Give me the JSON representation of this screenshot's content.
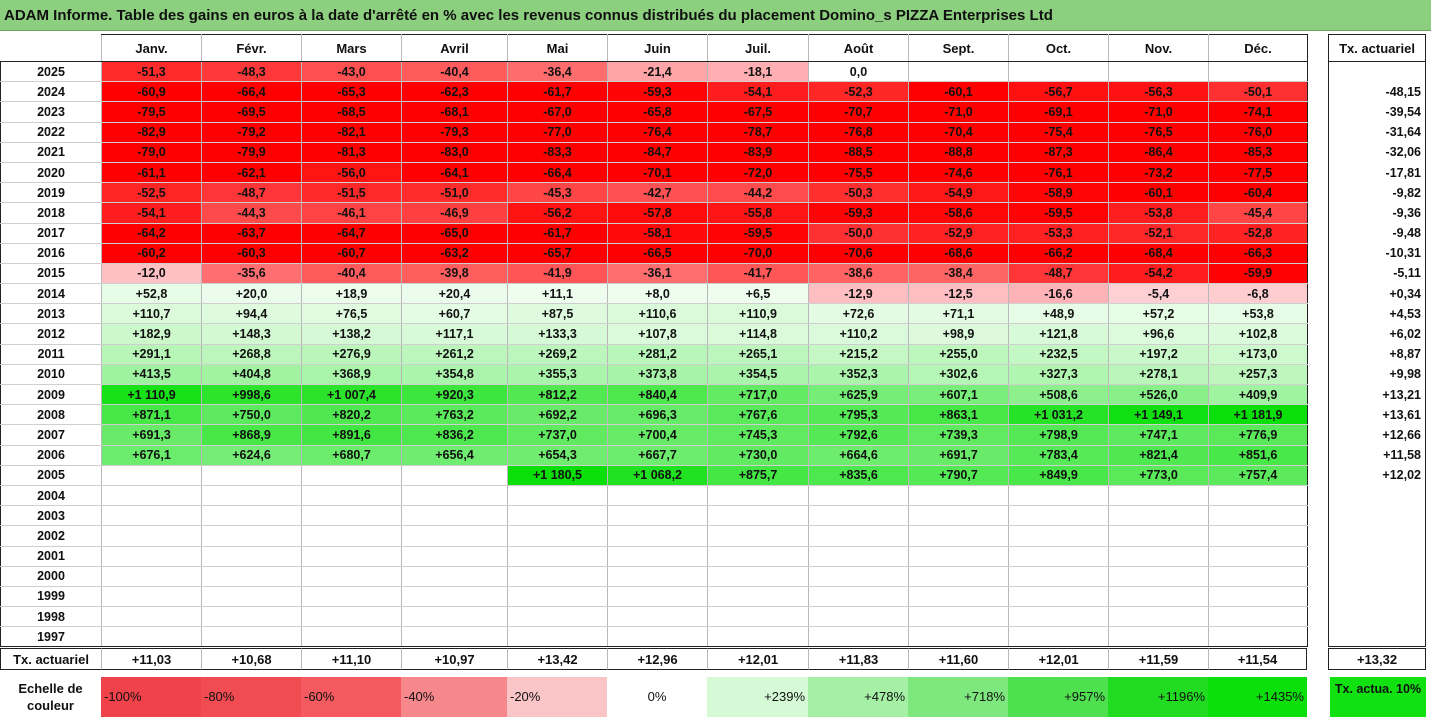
{
  "title": "ADAM Informe. Table des gains en euros à la date d'arrêté en % avec les revenus connus distribués du placement Domino_s PIZZA Enterprises Ltd",
  "months": [
    "Janv.",
    "Févr.",
    "Mars",
    "Avril",
    "Mai",
    "Juin",
    "Juil.",
    "Août",
    "Sept.",
    "Oct.",
    "Nov.",
    "Déc."
  ],
  "side_header": "Tx. actuariel",
  "rows": [
    {
      "year": "2025",
      "cells": [
        "-51,3",
        "-48,3",
        "-43,0",
        "-40,4",
        "-36,4",
        "-21,4",
        "-18,1",
        "0,0",
        "",
        "",
        "",
        ""
      ],
      "rate": ""
    },
    {
      "year": "2024",
      "cells": [
        "-60,9",
        "-66,4",
        "-65,3",
        "-62,3",
        "-61,7",
        "-59,3",
        "-54,1",
        "-52,3",
        "-60,1",
        "-56,7",
        "-56,3",
        "-50,1"
      ],
      "rate": "-48,15"
    },
    {
      "year": "2023",
      "cells": [
        "-79,5",
        "-69,5",
        "-68,5",
        "-68,1",
        "-67,0",
        "-65,8",
        "-67,5",
        "-70,7",
        "-71,0",
        "-69,1",
        "-71,0",
        "-74,1"
      ],
      "rate": "-39,54"
    },
    {
      "year": "2022",
      "cells": [
        "-82,9",
        "-79,2",
        "-82,1",
        "-79,3",
        "-77,0",
        "-76,4",
        "-78,7",
        "-76,8",
        "-70,4",
        "-75,4",
        "-76,5",
        "-76,0"
      ],
      "rate": "-31,64"
    },
    {
      "year": "2021",
      "cells": [
        "-79,0",
        "-79,9",
        "-81,3",
        "-83,0",
        "-83,3",
        "-84,7",
        "-83,9",
        "-88,5",
        "-88,8",
        "-87,3",
        "-86,4",
        "-85,3"
      ],
      "rate": "-32,06"
    },
    {
      "year": "2020",
      "cells": [
        "-61,1",
        "-62,1",
        "-56,0",
        "-64,1",
        "-66,4",
        "-70,1",
        "-72,0",
        "-75,5",
        "-74,6",
        "-76,1",
        "-73,2",
        "-77,5"
      ],
      "rate": "-17,81"
    },
    {
      "year": "2019",
      "cells": [
        "-52,5",
        "-48,7",
        "-51,5",
        "-51,0",
        "-45,3",
        "-42,7",
        "-44,2",
        "-50,3",
        "-54,9",
        "-58,9",
        "-60,1",
        "-60,4"
      ],
      "rate": "-9,82"
    },
    {
      "year": "2018",
      "cells": [
        "-54,1",
        "-44,3",
        "-46,1",
        "-46,9",
        "-56,2",
        "-57,8",
        "-55,8",
        "-59,3",
        "-58,6",
        "-59,5",
        "-53,8",
        "-45,4"
      ],
      "rate": "-9,36"
    },
    {
      "year": "2017",
      "cells": [
        "-64,2",
        "-63,7",
        "-64,7",
        "-65,0",
        "-61,7",
        "-58,1",
        "-59,5",
        "-50,0",
        "-52,9",
        "-53,3",
        "-52,1",
        "-52,8"
      ],
      "rate": "-9,48"
    },
    {
      "year": "2016",
      "cells": [
        "-60,2",
        "-60,3",
        "-60,7",
        "-63,2",
        "-65,7",
        "-66,5",
        "-70,0",
        "-70,6",
        "-68,6",
        "-66,2",
        "-68,4",
        "-66,3"
      ],
      "rate": "-10,31"
    },
    {
      "year": "2015",
      "cells": [
        "-12,0",
        "-35,6",
        "-40,4",
        "-39,8",
        "-41,9",
        "-36,1",
        "-41,7",
        "-38,6",
        "-38,4",
        "-48,7",
        "-54,2",
        "-59,9"
      ],
      "rate": "-5,11"
    },
    {
      "year": "2014",
      "cells": [
        "+52,8",
        "+20,0",
        "+18,9",
        "+20,4",
        "+11,1",
        "+8,0",
        "+6,5",
        "-12,9",
        "-12,5",
        "-16,6",
        "-5,4",
        "-6,8"
      ],
      "rate": "+0,34"
    },
    {
      "year": "2013",
      "cells": [
        "+110,7",
        "+94,4",
        "+76,5",
        "+60,7",
        "+87,5",
        "+110,6",
        "+110,9",
        "+72,6",
        "+71,1",
        "+48,9",
        "+57,2",
        "+53,8"
      ],
      "rate": "+4,53"
    },
    {
      "year": "2012",
      "cells": [
        "+182,9",
        "+148,3",
        "+138,2",
        "+117,1",
        "+133,3",
        "+107,8",
        "+114,8",
        "+110,2",
        "+98,9",
        "+121,8",
        "+96,6",
        "+102,8"
      ],
      "rate": "+6,02"
    },
    {
      "year": "2011",
      "cells": [
        "+291,1",
        "+268,8",
        "+276,9",
        "+261,2",
        "+269,2",
        "+281,2",
        "+265,1",
        "+215,2",
        "+255,0",
        "+232,5",
        "+197,2",
        "+173,0"
      ],
      "rate": "+8,87"
    },
    {
      "year": "2010",
      "cells": [
        "+413,5",
        "+404,8",
        "+368,9",
        "+354,8",
        "+355,3",
        "+373,8",
        "+354,5",
        "+352,3",
        "+302,6",
        "+327,3",
        "+278,1",
        "+257,3"
      ],
      "rate": "+9,98"
    },
    {
      "year": "2009",
      "cells": [
        "+1 110,9",
        "+998,6",
        "+1 007,4",
        "+920,3",
        "+812,2",
        "+840,4",
        "+717,0",
        "+625,9",
        "+607,1",
        "+508,6",
        "+526,0",
        "+409,9"
      ],
      "rate": "+13,21"
    },
    {
      "year": "2008",
      "cells": [
        "+871,1",
        "+750,0",
        "+820,2",
        "+763,2",
        "+692,2",
        "+696,3",
        "+767,6",
        "+795,3",
        "+863,1",
        "+1 031,2",
        "+1 149,1",
        "+1 181,9"
      ],
      "rate": "+13,61"
    },
    {
      "year": "2007",
      "cells": [
        "+691,3",
        "+868,9",
        "+891,6",
        "+836,2",
        "+737,0",
        "+700,4",
        "+745,3",
        "+792,6",
        "+739,3",
        "+798,9",
        "+747,1",
        "+776,9"
      ],
      "rate": "+12,66"
    },
    {
      "year": "2006",
      "cells": [
        "+676,1",
        "+624,6",
        "+680,7",
        "+656,4",
        "+654,3",
        "+667,7",
        "+730,0",
        "+664,6",
        "+691,7",
        "+783,4",
        "+821,4",
        "+851,6"
      ],
      "rate": "+11,58"
    },
    {
      "year": "2005",
      "cells": [
        "",
        "",
        "",
        "",
        "+1 180,5",
        "+1 068,2",
        "+875,7",
        "+835,6",
        "+790,7",
        "+849,9",
        "+773,0",
        "+757,4"
      ],
      "rate": "+12,02"
    },
    {
      "year": "2004",
      "cells": [
        "",
        "",
        "",
        "",
        "",
        "",
        "",
        "",
        "",
        "",
        "",
        ""
      ],
      "rate": ""
    },
    {
      "year": "2003",
      "cells": [
        "",
        "",
        "",
        "",
        "",
        "",
        "",
        "",
        "",
        "",
        "",
        ""
      ],
      "rate": ""
    },
    {
      "year": "2002",
      "cells": [
        "",
        "",
        "",
        "",
        "",
        "",
        "",
        "",
        "",
        "",
        "",
        ""
      ],
      "rate": ""
    },
    {
      "year": "2001",
      "cells": [
        "",
        "",
        "",
        "",
        "",
        "",
        "",
        "",
        "",
        "",
        "",
        ""
      ],
      "rate": ""
    },
    {
      "year": "2000",
      "cells": [
        "",
        "",
        "",
        "",
        "",
        "",
        "",
        "",
        "",
        "",
        "",
        ""
      ],
      "rate": ""
    },
    {
      "year": "1999",
      "cells": [
        "",
        "",
        "",
        "",
        "",
        "",
        "",
        "",
        "",
        "",
        "",
        ""
      ],
      "rate": ""
    },
    {
      "year": "1998",
      "cells": [
        "",
        "",
        "",
        "",
        "",
        "",
        "",
        "",
        "",
        "",
        "",
        ""
      ],
      "rate": ""
    },
    {
      "year": "1997",
      "cells": [
        "",
        "",
        "",
        "",
        "",
        "",
        "",
        "",
        "",
        "",
        "",
        ""
      ],
      "rate": ""
    }
  ],
  "footer": {
    "label": "Tx. actuariel",
    "values": [
      "+11,03",
      "+10,68",
      "+11,10",
      "+10,97",
      "+13,42",
      "+12,96",
      "+12,01",
      "+11,83",
      "+11,60",
      "+12,01",
      "+11,59",
      "+11,54"
    ],
    "overall": "+13,32"
  },
  "legend": {
    "label": "Echelle de couleur",
    "items": [
      {
        "text": "-100%",
        "color": "#f0424a"
      },
      {
        "text": "-80%",
        "color": "#f24c53"
      },
      {
        "text": "-60%",
        "color": "#f45a60"
      },
      {
        "text": "-40%",
        "color": "#f6878b"
      },
      {
        "text": "-20%",
        "color": "#f9c5c7"
      },
      {
        "text": "0%",
        "color": "#ffffff"
      },
      {
        "text": "+239%",
        "color": "#d6fad6"
      },
      {
        "text": "+478%",
        "color": "#a6f0a6"
      },
      {
        "text": "+718%",
        "color": "#7ee87e"
      },
      {
        "text": "+957%",
        "color": "#4fe04f"
      },
      {
        "text": "+1196%",
        "color": "#22dc22"
      },
      {
        "text": "+1435%",
        "color": "#0be00b"
      }
    ],
    "side_label": "Tx. actua. 10%",
    "side_color": "#11e011"
  }
}
